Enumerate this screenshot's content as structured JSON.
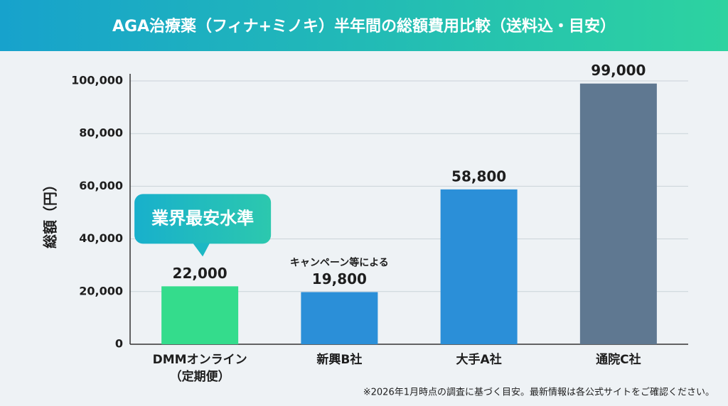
{
  "chart_data": {
    "type": "bar",
    "title": "AGA治療薬（フィナ+ミノキ）半年間の総額費用比較（送料込・目安）",
    "y_label": "総額（円）",
    "categories": [
      "DMMオンライン\n（定期便）",
      "新興B社",
      "大手A社",
      "通院C社"
    ],
    "values": [
      22000,
      19800,
      58800,
      99000
    ],
    "value_labels": [
      "22,000",
      "19,800",
      "58,800",
      "99,000"
    ],
    "colors": [
      "#34dc8c",
      "#2b8fd8",
      "#2b8fd8",
      "#5f7891"
    ],
    "ylim": [
      0,
      100000
    ],
    "yticks": [
      0,
      {
        "value": 20000,
        "label": "20,000"
      },
      {
        "value": 40000,
        "label": "40,000"
      },
      {
        "value": 60000,
        "label": "60,000"
      },
      {
        "value": 80000,
        "label": "80,000"
      },
      {
        "value": 100000,
        "label": "100,000"
      }
    ],
    "grid": true,
    "callout": "業界最安水準",
    "note": "キャンペーン等による",
    "footnote": "※2026年1月時点の調査に基づく目安。最新情報は各公式サイトをご確認ください。"
  }
}
